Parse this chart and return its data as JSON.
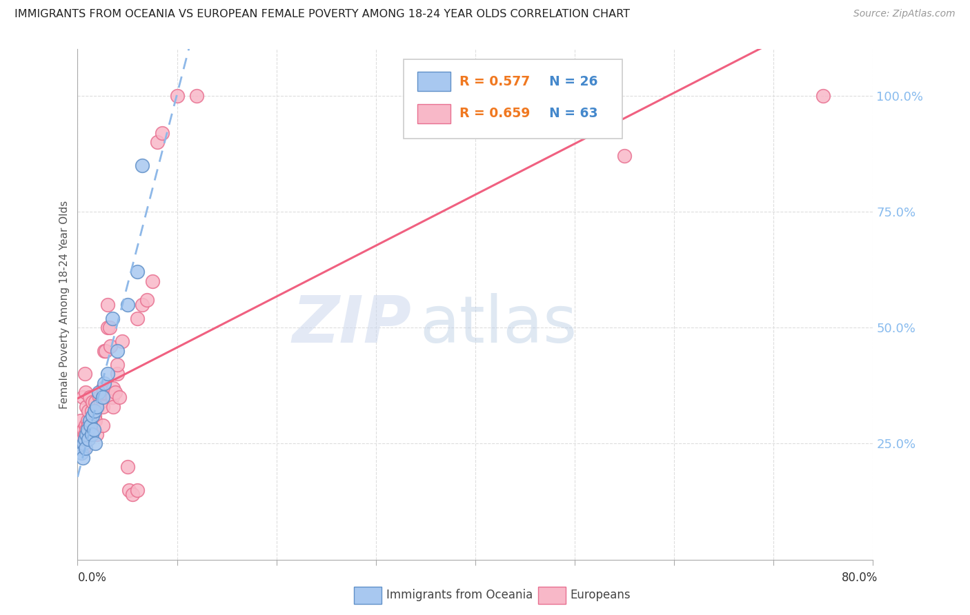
{
  "title": "IMMIGRANTS FROM OCEANIA VS EUROPEAN FEMALE POVERTY AMONG 18-24 YEAR OLDS CORRELATION CHART",
  "source": "Source: ZipAtlas.com",
  "ylabel": "Female Poverty Among 18-24 Year Olds",
  "legend_blue_r": "R = 0.577",
  "legend_blue_n": "N = 26",
  "legend_pink_r": "R = 0.659",
  "legend_pink_n": "N = 63",
  "legend_label_blue": "Immigrants from Oceania",
  "legend_label_pink": "Europeans",
  "watermark_zip": "ZIP",
  "watermark_atlas": "atlas",
  "blue_color": "#A8C8F0",
  "pink_color": "#F8B8C8",
  "blue_edge_color": "#6090C8",
  "pink_edge_color": "#E87090",
  "blue_line_color": "#8EB8E8",
  "pink_line_color": "#F06080",
  "right_axis_color": "#88BBEE",
  "legend_r_color": "#F07820",
  "legend_n_color": "#4488CC",
  "xmin": 0.0,
  "xmax": 80.0,
  "ymin": 0.0,
  "ymax": 110.0,
  "yticks": [
    25.0,
    50.0,
    75.0,
    100.0
  ],
  "oceania_x": [
    0.2,
    0.4,
    0.5,
    0.6,
    0.7,
    0.8,
    0.9,
    1.0,
    1.1,
    1.2,
    1.3,
    1.4,
    1.5,
    1.6,
    1.7,
    1.8,
    1.9,
    2.1,
    2.5,
    2.7,
    3.0,
    3.5,
    4.0,
    5.0,
    6.0,
    6.5
  ],
  "oceania_y": [
    24.0,
    23.0,
    22.0,
    25.0,
    26.0,
    24.0,
    27.0,
    28.0,
    26.0,
    30.0,
    29.0,
    27.0,
    31.0,
    28.0,
    32.0,
    25.0,
    33.0,
    36.0,
    35.0,
    38.0,
    40.0,
    52.0,
    45.0,
    55.0,
    62.0,
    85.0
  ],
  "europe_x": [
    0.1,
    0.3,
    0.4,
    0.5,
    0.5,
    0.6,
    0.6,
    0.7,
    0.7,
    0.8,
    0.8,
    0.9,
    0.9,
    1.0,
    1.0,
    1.1,
    1.1,
    1.2,
    1.2,
    1.3,
    1.4,
    1.5,
    1.5,
    1.6,
    1.7,
    1.8,
    1.8,
    1.9,
    2.0,
    2.2,
    2.3,
    2.5,
    2.5,
    2.5,
    2.6,
    2.7,
    2.8,
    3.0,
    3.0,
    3.2,
    3.3,
    3.5,
    3.6,
    3.6,
    3.8,
    4.0,
    4.0,
    4.2,
    4.5,
    5.0,
    5.2,
    5.5,
    6.0,
    6.0,
    6.5,
    7.0,
    7.5,
    8.0,
    8.5,
    10.0,
    12.0,
    55.0,
    75.0
  ],
  "europe_y": [
    24.0,
    30.0,
    25.0,
    26.0,
    35.0,
    24.0,
    28.0,
    27.0,
    40.0,
    29.0,
    36.0,
    33.0,
    28.0,
    27.0,
    30.0,
    29.0,
    32.0,
    28.0,
    35.0,
    30.0,
    32.0,
    34.0,
    28.0,
    30.0,
    31.0,
    30.0,
    34.0,
    27.0,
    33.0,
    35.0,
    34.0,
    29.0,
    33.0,
    37.0,
    36.0,
    45.0,
    45.0,
    50.0,
    55.0,
    50.0,
    46.0,
    35.0,
    33.0,
    37.0,
    36.0,
    40.0,
    42.0,
    35.0,
    47.0,
    20.0,
    15.0,
    14.0,
    15.0,
    52.0,
    55.0,
    56.0,
    60.0,
    90.0,
    92.0,
    100.0,
    100.0,
    87.0,
    100.0
  ],
  "blue_regression_slope": 1.18,
  "blue_regression_intercept": 19.5,
  "pink_regression_slope": 1.18,
  "pink_regression_intercept": 16.0
}
